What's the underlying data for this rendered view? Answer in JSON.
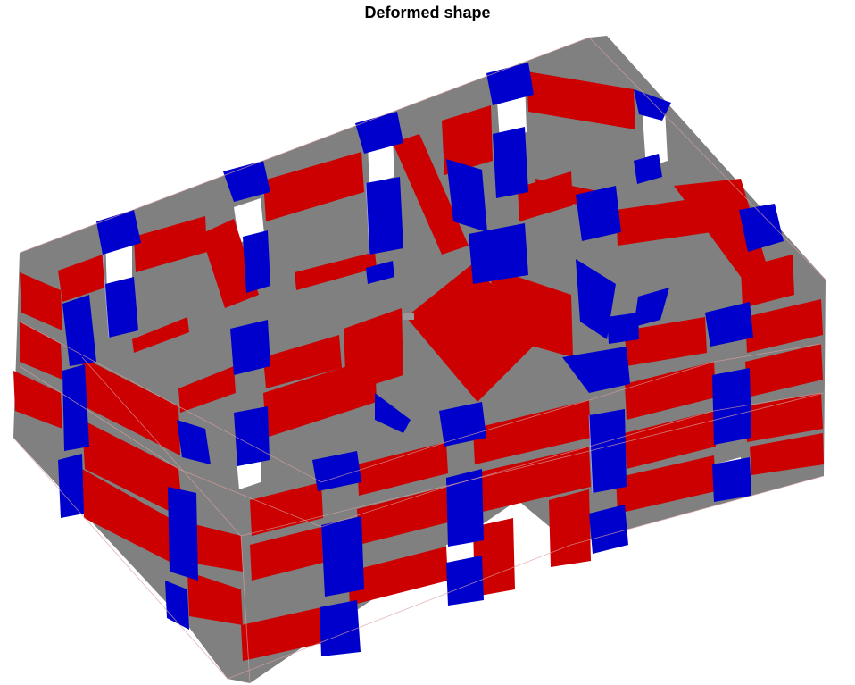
{
  "figure": {
    "title": "Deformed shape"
  },
  "colors": {
    "band": "#808080",
    "panel": "#cc0000",
    "pier": "#0000cc",
    "background": "#ffffff"
  }
}
